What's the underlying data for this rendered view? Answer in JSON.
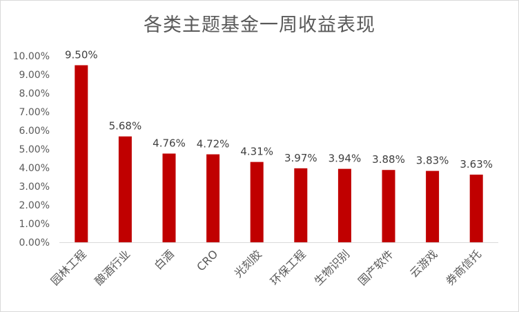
{
  "chart_data": {
    "type": "bar",
    "title": "各类主题基金一周收益表现",
    "categories": [
      "园林工程",
      "酿酒行业",
      "白酒",
      "CRO",
      "光刻胶",
      "环保工程",
      "生物识别",
      "国产软件",
      "云游戏",
      "券商信托"
    ],
    "values": [
      9.5,
      5.68,
      4.76,
      4.72,
      4.31,
      3.97,
      3.94,
      3.88,
      3.83,
      3.63
    ],
    "data_labels": [
      "9.50%",
      "5.68%",
      "4.76%",
      "4.72%",
      "4.31%",
      "3.97%",
      "3.94%",
      "3.88%",
      "3.83%",
      "3.63%"
    ],
    "ylim": [
      0,
      10
    ],
    "yticks": [
      "0.00%",
      "1.00%",
      "2.00%",
      "3.00%",
      "4.00%",
      "5.00%",
      "6.00%",
      "7.00%",
      "8.00%",
      "9.00%",
      "10.00%"
    ],
    "xlabel": "",
    "ylabel": "",
    "grid": false,
    "legend": "none",
    "bar_color": "#C00000"
  }
}
